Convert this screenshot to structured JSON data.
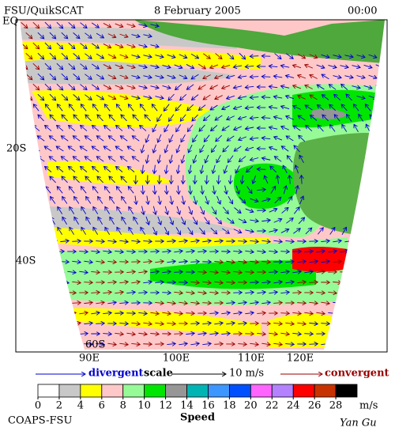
{
  "header": {
    "left": "FSU/QuikSCAT",
    "center": "8 February 2005",
    "right": "00:00"
  },
  "map": {
    "lat_labels": [
      "EQ",
      "20S",
      "40S",
      "60S"
    ],
    "lon_labels": [
      "90E",
      "100E",
      "110E",
      "120E"
    ]
  },
  "legend": {
    "divergent": "divergent",
    "scale": "scale",
    "scale_value": "10 m/s",
    "convergent": "convergent"
  },
  "colorbar": {
    "ticks": [
      0,
      2,
      4,
      6,
      8,
      10,
      12,
      14,
      16,
      18,
      20,
      22,
      24,
      26,
      28
    ],
    "unit": "m/s",
    "title": "Speed",
    "colors": [
      "#ffffff",
      "#c8c8c8",
      "#ffff00",
      "#ffc8c8",
      "#96fa96",
      "#00e600",
      "#969696",
      "#00b4b4",
      "#3c96ff",
      "#0050ff",
      "#ff64ff",
      "#b482ff",
      "#ff0000",
      "#c83200",
      "#000000"
    ]
  },
  "footer": {
    "left": "COAPS-FSU",
    "right": "Yan Gu"
  }
}
